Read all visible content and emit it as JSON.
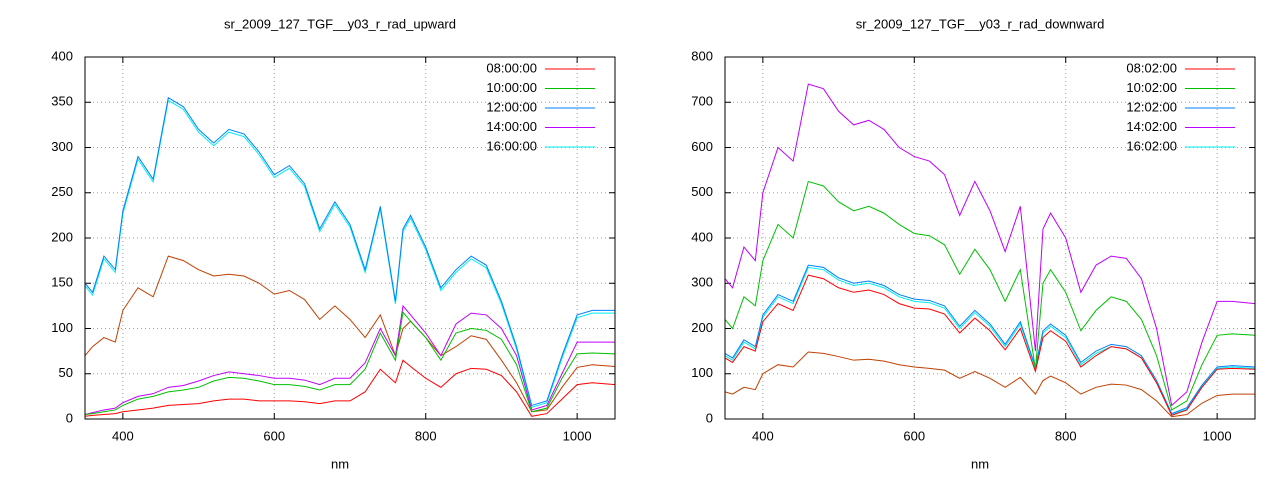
{
  "chart_data": [
    {
      "type": "line",
      "title": "sr_2009_127_TGF__y03_r_rad_upward",
      "xlabel": "nm",
      "x": [
        350,
        360,
        375,
        390,
        400,
        420,
        440,
        460,
        480,
        500,
        520,
        540,
        560,
        580,
        600,
        620,
        640,
        660,
        680,
        700,
        720,
        740,
        760,
        770,
        780,
        800,
        820,
        840,
        860,
        880,
        900,
        920,
        940,
        960,
        980,
        1000,
        1020,
        1050
      ],
      "series": [
        {
          "name": "08:00:00",
          "color": "#ff0000",
          "values": [
            3,
            4,
            5,
            6,
            8,
            10,
            12,
            15,
            16,
            17,
            20,
            22,
            22,
            20,
            20,
            20,
            19,
            17,
            20,
            20,
            30,
            55,
            40,
            65,
            58,
            45,
            35,
            50,
            56,
            55,
            48,
            30,
            3,
            6,
            22,
            38,
            40,
            38
          ]
        },
        {
          "name": "10:00:00",
          "color": "#00c000",
          "values": [
            5,
            6,
            8,
            10,
            15,
            22,
            25,
            30,
            32,
            35,
            42,
            46,
            45,
            42,
            38,
            38,
            36,
            32,
            38,
            38,
            55,
            95,
            65,
            118,
            108,
            90,
            65,
            95,
            100,
            98,
            88,
            60,
            8,
            12,
            45,
            72,
            73,
            72
          ]
        },
        {
          "name": "12:00:00",
          "color": "#0080ff",
          "values": [
            150,
            140,
            180,
            165,
            230,
            290,
            265,
            355,
            345,
            320,
            305,
            320,
            315,
            295,
            270,
            280,
            260,
            210,
            240,
            215,
            165,
            235,
            130,
            210,
            225,
            190,
            145,
            165,
            180,
            170,
            130,
            80,
            15,
            20,
            70,
            115,
            120,
            120
          ]
        },
        {
          "name": "14:00:00",
          "color": "#c000ff",
          "values": [
            5,
            7,
            10,
            12,
            18,
            25,
            28,
            35,
            37,
            42,
            48,
            52,
            50,
            48,
            45,
            45,
            43,
            38,
            45,
            45,
            62,
            100,
            70,
            125,
            115,
            95,
            70,
            105,
            117,
            115,
            100,
            70,
            10,
            15,
            50,
            85,
            85,
            85
          ]
        },
        {
          "name": "16:00:00",
          "color": "#00eeee",
          "values": [
            147,
            137,
            177,
            162,
            227,
            287,
            262,
            352,
            342,
            317,
            302,
            317,
            312,
            292,
            267,
            277,
            257,
            207,
            237,
            212,
            162,
            232,
            127,
            207,
            222,
            187,
            142,
            162,
            177,
            167,
            127,
            77,
            13,
            18,
            67,
            112,
            117,
            117
          ]
        },
        {
          "color": "#c04000",
          "values": [
            70,
            80,
            90,
            85,
            120,
            145,
            135,
            180,
            175,
            165,
            158,
            160,
            158,
            150,
            138,
            142,
            132,
            110,
            125,
            110,
            90,
            115,
            70,
            100,
            108,
            90,
            70,
            80,
            92,
            88,
            65,
            40,
            8,
            10,
            35,
            57,
            60,
            58
          ]
        }
      ],
      "xlim": [
        350,
        1050
      ],
      "xticks": [
        400,
        600,
        800,
        1000
      ],
      "ylim": [
        0,
        400
      ],
      "yticks": [
        0,
        50,
        100,
        150,
        200,
        250,
        300,
        350,
        400
      ],
      "grid": true,
      "legend": "upper right"
    },
    {
      "type": "line",
      "title": "sr_2009_127_TGF__y03_r_rad_downward",
      "xlabel": "nm",
      "x": [
        350,
        360,
        375,
        390,
        400,
        420,
        440,
        460,
        480,
        500,
        520,
        540,
        560,
        580,
        600,
        620,
        640,
        660,
        680,
        700,
        720,
        740,
        760,
        770,
        780,
        800,
        820,
        840,
        860,
        880,
        900,
        920,
        940,
        960,
        980,
        1000,
        1020,
        1050
      ],
      "series": [
        {
          "name": "08:02:00",
          "color": "#ff0000",
          "values": [
            135,
            125,
            160,
            150,
            215,
            255,
            240,
            318,
            310,
            290,
            280,
            285,
            275,
            255,
            245,
            243,
            232,
            190,
            223,
            195,
            153,
            200,
            105,
            180,
            195,
            172,
            115,
            140,
            160,
            155,
            135,
            80,
            8,
            20,
            70,
            110,
            112,
            110
          ]
        },
        {
          "name": "10:02:00",
          "color": "#00c000",
          "values": [
            220,
            200,
            270,
            250,
            350,
            430,
            400,
            525,
            515,
            480,
            460,
            470,
            455,
            430,
            410,
            405,
            385,
            320,
            375,
            330,
            260,
            330,
            110,
            300,
            330,
            280,
            195,
            240,
            270,
            260,
            220,
            140,
            20,
            40,
            120,
            185,
            188,
            185
          ]
        },
        {
          "name": "12:02:00",
          "color": "#0080ff",
          "values": [
            145,
            135,
            175,
            160,
            230,
            275,
            260,
            340,
            335,
            312,
            300,
            305,
            295,
            275,
            265,
            262,
            250,
            205,
            240,
            210,
            165,
            215,
            115,
            195,
            210,
            185,
            125,
            150,
            165,
            160,
            140,
            85,
            12,
            25,
            75,
            115,
            118,
            115
          ]
        },
        {
          "name": "14:02:00",
          "color": "#c000ff",
          "values": [
            310,
            290,
            380,
            350,
            500,
            600,
            570,
            740,
            730,
            680,
            650,
            660,
            640,
            600,
            580,
            570,
            540,
            450,
            525,
            460,
            370,
            470,
            150,
            420,
            455,
            400,
            280,
            340,
            360,
            355,
            310,
            200,
            30,
            60,
            170,
            260,
            260,
            255
          ]
        },
        {
          "name": "16:02:00",
          "color": "#00eeee",
          "values": [
            140,
            130,
            170,
            155,
            225,
            270,
            255,
            335,
            330,
            307,
            295,
            300,
            290,
            270,
            260,
            257,
            245,
            200,
            235,
            205,
            160,
            210,
            110,
            190,
            205,
            180,
            120,
            145,
            160,
            155,
            135,
            80,
            10,
            22,
            72,
            112,
            115,
            112
          ]
        },
        {
          "color": "#c04000",
          "values": [
            60,
            55,
            70,
            65,
            100,
            120,
            115,
            148,
            145,
            138,
            130,
            132,
            128,
            120,
            115,
            112,
            108,
            90,
            105,
            90,
            70,
            92,
            55,
            85,
            95,
            80,
            55,
            70,
            77,
            75,
            65,
            40,
            5,
            10,
            35,
            52,
            55,
            55
          ]
        }
      ],
      "xlim": [
        350,
        1050
      ],
      "xticks": [
        400,
        600,
        800,
        1000
      ],
      "ylim": [
        0,
        800
      ],
      "yticks": [
        0,
        100,
        200,
        300,
        400,
        500,
        600,
        700,
        800
      ],
      "grid": true,
      "legend": "upper right"
    }
  ]
}
